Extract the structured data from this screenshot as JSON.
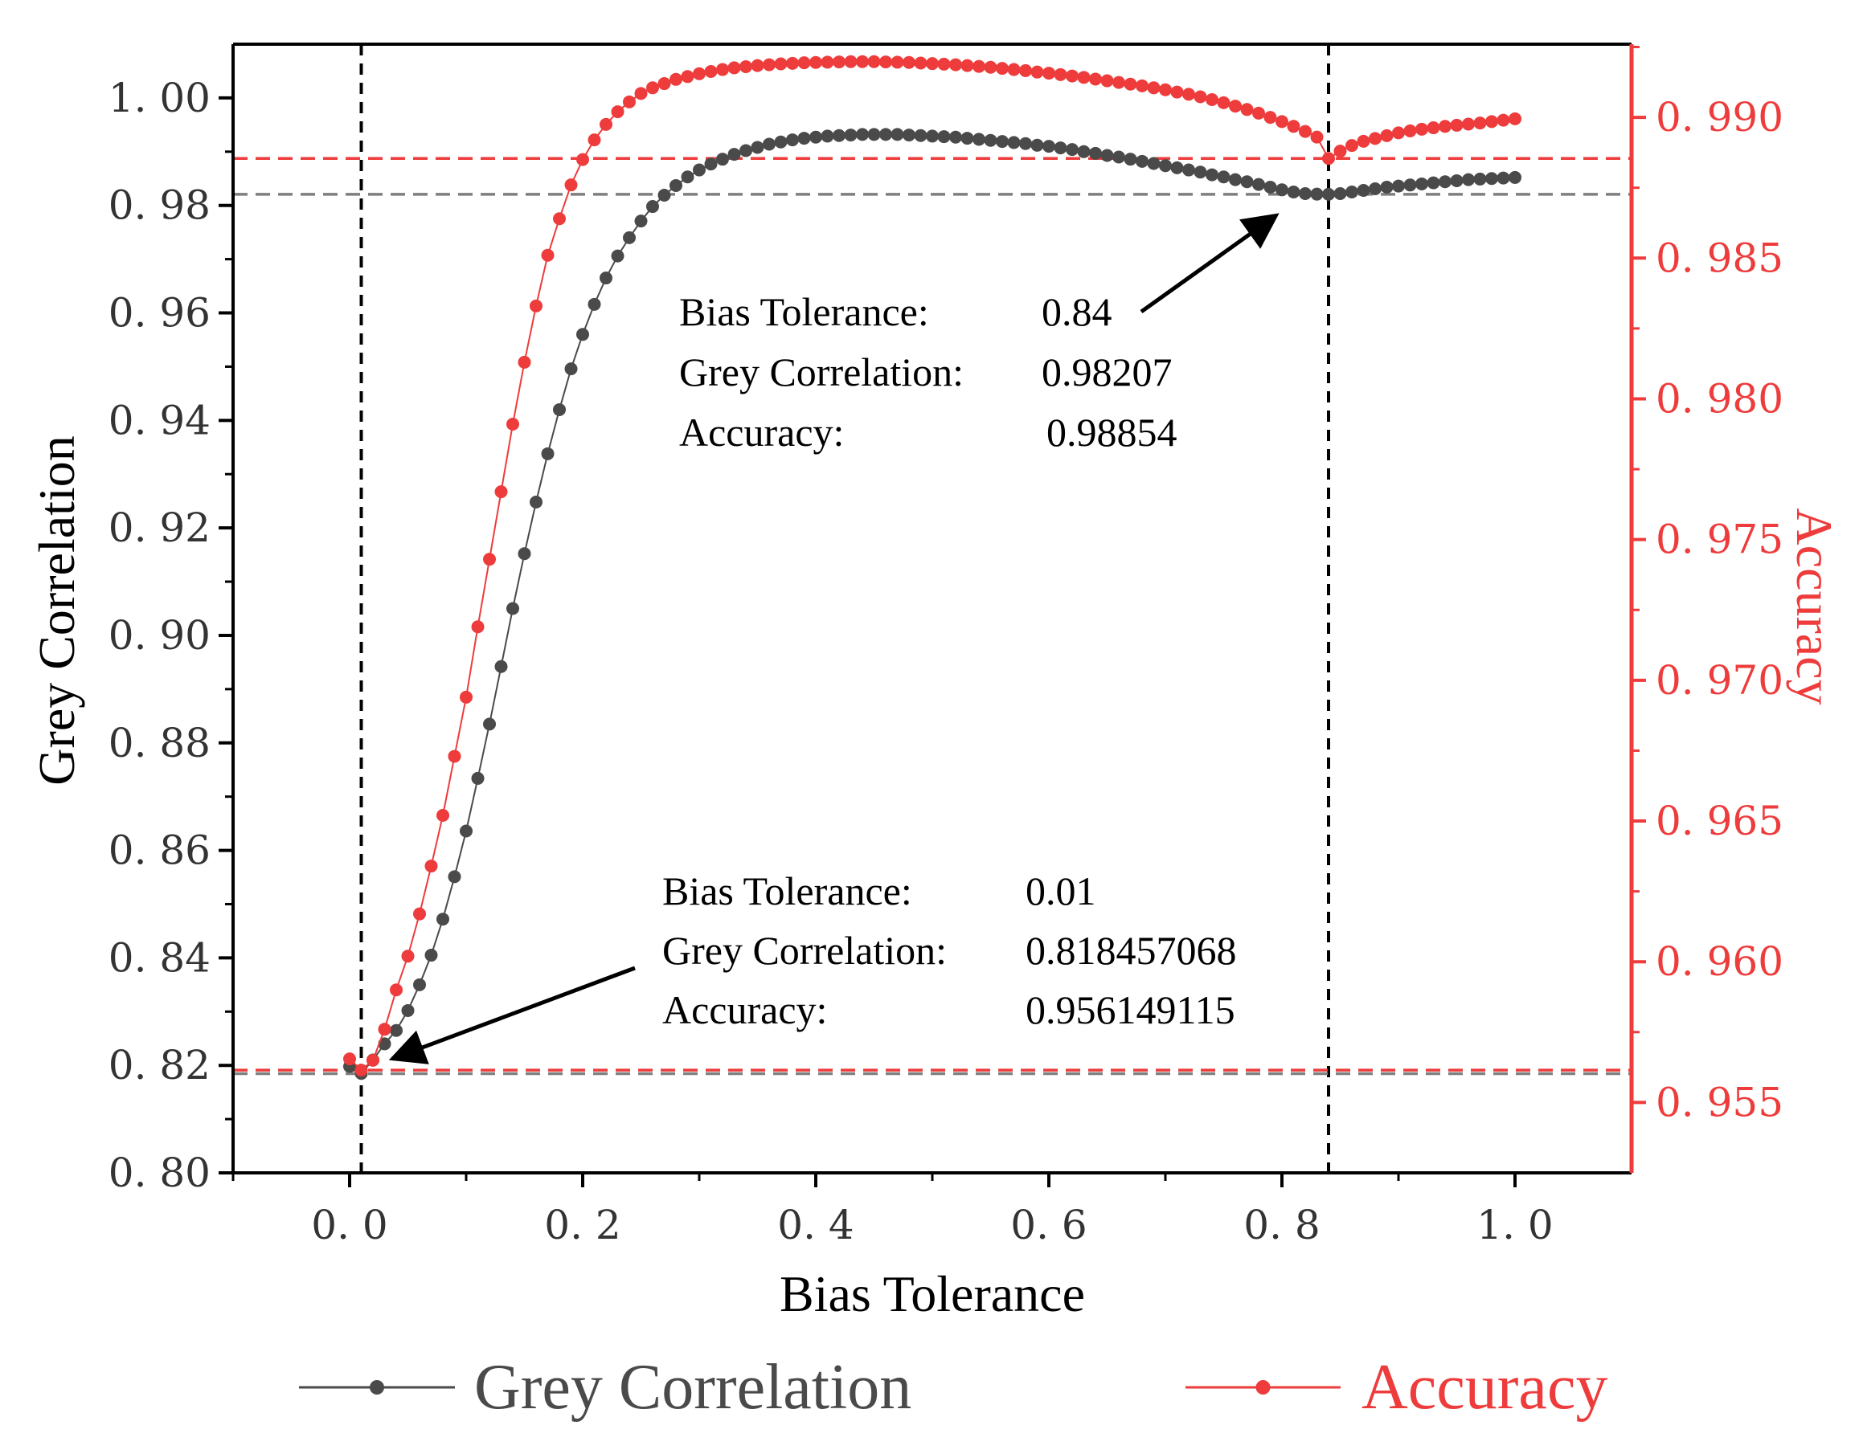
{
  "colors": {
    "grey_series": "#4a4a4a",
    "accuracy_series": "#ee3b3b",
    "left_axis": "#000000",
    "right_axis": "#ee3b3b",
    "grey_ref_line": "#7f7f7f",
    "acc_ref_line": "#ee3b3b",
    "marker_line": "#000000"
  },
  "chart_data": {
    "type": "line",
    "title": "",
    "xlabel": "Bias Tolerance",
    "ylabel": "Grey Correlation",
    "y2label": "Accuracy",
    "xlim": [
      -0.1,
      1.1
    ],
    "ylim": [
      0.8,
      1.01
    ],
    "y2lim": [
      0.9525,
      0.9926
    ],
    "x_ticks": [
      0.0,
      0.2,
      0.4,
      0.6,
      0.8,
      1.0
    ],
    "x_tick_labels": [
      "0. 0",
      "0. 2",
      "0. 4",
      "0. 6",
      "0. 8",
      "1. 0"
    ],
    "y_ticks": [
      0.8,
      0.82,
      0.84,
      0.86,
      0.88,
      0.9,
      0.92,
      0.94,
      0.96,
      0.98,
      1.0
    ],
    "y_tick_labels": [
      "0. 80",
      "0. 82",
      "0. 84",
      "0. 86",
      "0. 88",
      "0. 90",
      "0. 92",
      "0. 94",
      "0. 96",
      "0. 98",
      "1. 00"
    ],
    "y2_ticks": [
      0.955,
      0.96,
      0.965,
      0.97,
      0.975,
      0.98,
      0.985,
      0.99
    ],
    "y2_tick_labels": [
      "0. 955",
      "0. 960",
      "0. 965",
      "0. 970",
      "0. 975",
      "0. 980",
      "0. 985",
      "0. 990"
    ],
    "legend_position": "bottom",
    "series": [
      {
        "name": "Grey Correlation",
        "axis": "left",
        "x": [
          0.0,
          0.01,
          0.02,
          0.03,
          0.04,
          0.05,
          0.06,
          0.07,
          0.08,
          0.09,
          0.1,
          0.11,
          0.12,
          0.13,
          0.14,
          0.15,
          0.16,
          0.17,
          0.18,
          0.19,
          0.2,
          0.21,
          0.22,
          0.23,
          0.24,
          0.25,
          0.26,
          0.27,
          0.28,
          0.29,
          0.3,
          0.31,
          0.32,
          0.33,
          0.34,
          0.35,
          0.36,
          0.37,
          0.38,
          0.39,
          0.4,
          0.41,
          0.42,
          0.43,
          0.44,
          0.45,
          0.46,
          0.47,
          0.48,
          0.49,
          0.5,
          0.51,
          0.52,
          0.53,
          0.54,
          0.55,
          0.56,
          0.57,
          0.58,
          0.59,
          0.6,
          0.61,
          0.62,
          0.63,
          0.64,
          0.65,
          0.66,
          0.67,
          0.68,
          0.69,
          0.7,
          0.71,
          0.72,
          0.73,
          0.74,
          0.75,
          0.76,
          0.77,
          0.78,
          0.79,
          0.8,
          0.81,
          0.82,
          0.83,
          0.84,
          0.85,
          0.86,
          0.87,
          0.88,
          0.89,
          0.9,
          0.91,
          0.92,
          0.93,
          0.94,
          0.95,
          0.96,
          0.97,
          0.98,
          0.99,
          1.0
        ],
        "values": [
          0.8198,
          0.8185,
          0.821,
          0.824,
          0.8265,
          0.8302,
          0.835,
          0.8405,
          0.8472,
          0.8551,
          0.8636,
          0.8734,
          0.8835,
          0.8942,
          0.905,
          0.9152,
          0.9248,
          0.9338,
          0.942,
          0.9496,
          0.956,
          0.9616,
          0.9665,
          0.9706,
          0.974,
          0.9771,
          0.9798,
          0.9819,
          0.9837,
          0.9853,
          0.9866,
          0.9877,
          0.9886,
          0.9895,
          0.9902,
          0.9908,
          0.9914,
          0.9918,
          0.9922,
          0.9925,
          0.9927,
          0.9929,
          0.993,
          0.9931,
          0.9932,
          0.9932,
          0.9932,
          0.9932,
          0.9931,
          0.993,
          0.9929,
          0.9928,
          0.9927,
          0.9925,
          0.9923,
          0.9921,
          0.9919,
          0.9917,
          0.9915,
          0.9912,
          0.991,
          0.9907,
          0.9904,
          0.99,
          0.9897,
          0.9893,
          0.989,
          0.9886,
          0.9882,
          0.9878,
          0.9874,
          0.987,
          0.9866,
          0.9862,
          0.9857,
          0.9853,
          0.9848,
          0.9844,
          0.9839,
          0.9834,
          0.9829,
          0.9825,
          0.9822,
          0.9821,
          0.98207,
          0.9822,
          0.9825,
          0.9828,
          0.9831,
          0.9834,
          0.9836,
          0.9838,
          0.984,
          0.9842,
          0.9844,
          0.9846,
          0.9848,
          0.9849,
          0.985,
          0.9851,
          0.9852
        ]
      },
      {
        "name": "Accuracy",
        "axis": "right",
        "x": [
          0.0,
          0.01,
          0.02,
          0.03,
          0.04,
          0.05,
          0.06,
          0.07,
          0.08,
          0.09,
          0.1,
          0.11,
          0.12,
          0.13,
          0.14,
          0.15,
          0.16,
          0.17,
          0.18,
          0.19,
          0.2,
          0.21,
          0.22,
          0.23,
          0.24,
          0.25,
          0.26,
          0.27,
          0.28,
          0.29,
          0.3,
          0.31,
          0.32,
          0.33,
          0.34,
          0.35,
          0.36,
          0.37,
          0.38,
          0.39,
          0.4,
          0.41,
          0.42,
          0.43,
          0.44,
          0.45,
          0.46,
          0.47,
          0.48,
          0.49,
          0.5,
          0.51,
          0.52,
          0.53,
          0.54,
          0.55,
          0.56,
          0.57,
          0.58,
          0.59,
          0.6,
          0.61,
          0.62,
          0.63,
          0.64,
          0.65,
          0.66,
          0.67,
          0.68,
          0.69,
          0.7,
          0.71,
          0.72,
          0.73,
          0.74,
          0.75,
          0.76,
          0.77,
          0.78,
          0.79,
          0.8,
          0.81,
          0.82,
          0.83,
          0.84,
          0.85,
          0.86,
          0.87,
          0.88,
          0.89,
          0.9,
          0.91,
          0.92,
          0.93,
          0.94,
          0.95,
          0.96,
          0.97,
          0.98,
          0.99,
          1.0
        ],
        "values": [
          0.95655,
          0.95615,
          0.9565,
          0.9576,
          0.959,
          0.9602,
          0.9617,
          0.9634,
          0.9652,
          0.9673,
          0.9694,
          0.9719,
          0.9743,
          0.9767,
          0.9791,
          0.9813,
          0.9833,
          0.9851,
          0.9864,
          0.9876,
          0.9885,
          0.9892,
          0.98975,
          0.9902,
          0.99055,
          0.99085,
          0.99105,
          0.9912,
          0.99135,
          0.99145,
          0.99155,
          0.99163,
          0.9917,
          0.99176,
          0.9918,
          0.99184,
          0.99187,
          0.9919,
          0.99192,
          0.99194,
          0.99195,
          0.99196,
          0.99197,
          0.99198,
          0.99198,
          0.99198,
          0.99197,
          0.99196,
          0.99195,
          0.99193,
          0.99191,
          0.99189,
          0.99187,
          0.99184,
          0.99181,
          0.99178,
          0.99174,
          0.9917,
          0.99166,
          0.99161,
          0.99157,
          0.99152,
          0.99147,
          0.99142,
          0.99136,
          0.9913,
          0.99124,
          0.99118,
          0.99112,
          0.99105,
          0.99098,
          0.9909,
          0.99082,
          0.99073,
          0.99063,
          0.99052,
          0.9904,
          0.99028,
          0.99015,
          0.99,
          0.98985,
          0.98968,
          0.9895,
          0.9893,
          0.98854,
          0.9888,
          0.989,
          0.98915,
          0.98925,
          0.98935,
          0.98945,
          0.98952,
          0.98958,
          0.98963,
          0.98968,
          0.98972,
          0.98976,
          0.9898,
          0.98985,
          0.9899,
          0.98995
        ]
      }
    ],
    "reference_lines": [
      {
        "name": "vertical-marker-0.01",
        "orientation": "vertical",
        "x": 0.01
      },
      {
        "name": "vertical-marker-0.84",
        "orientation": "vertical",
        "x": 0.84
      },
      {
        "name": "grey-ref-high",
        "orientation": "horizontal",
        "axis": "left",
        "y": 0.98207
      },
      {
        "name": "grey-ref-low",
        "orientation": "horizontal",
        "axis": "left",
        "y": 0.818457068
      },
      {
        "name": "acc-ref-high",
        "orientation": "horizontal",
        "axis": "right",
        "y": 0.98854
      },
      {
        "name": "acc-ref-low",
        "orientation": "horizontal",
        "axis": "right",
        "y": 0.956149115
      }
    ],
    "annotations": [
      {
        "name": "annotation-high",
        "rows": [
          {
            "label": "Bias Tolerance:",
            "value": "0.84"
          },
          {
            "label": "Grey Correlation:",
            "value": "0.98207"
          },
          {
            "label": "Accuracy:",
            "value": "0.98854"
          }
        ]
      },
      {
        "name": "annotation-low",
        "rows": [
          {
            "label": "Bias Tolerance:",
            "value": "0.01"
          },
          {
            "label": "Grey Correlation:",
            "value": "0.818457068"
          },
          {
            "label": "Accuracy:",
            "value": "0.956149115"
          }
        ]
      }
    ]
  }
}
